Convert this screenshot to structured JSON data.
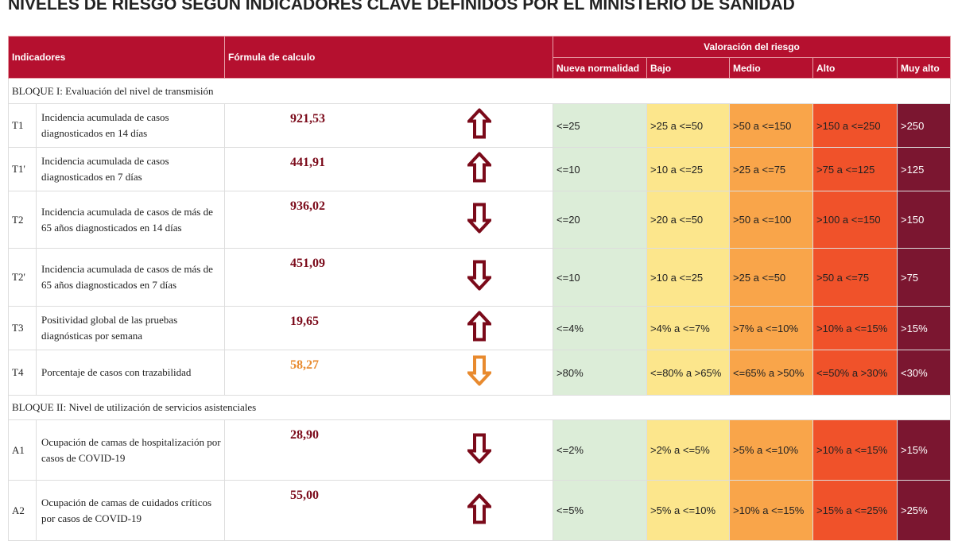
{
  "header": {
    "title": "NIVELES DE RIESGO SEGÚN INDICADORES CLAVE DEFINIDOS POR EL MINISTERIO DE SANIDAD"
  },
  "table": {
    "columns": {
      "indicators": "Indicadores",
      "formula": "Fórmula de calculo",
      "risk": "Valoración del riesgo",
      "levels": [
        "Nueva normalidad",
        "Bajo",
        "Medio",
        "Alto",
        "Muy alto"
      ]
    },
    "level_colors": [
      "#dcedd8",
      "#fce68c",
      "#f9a54a",
      "#f0522a",
      "#7b1630"
    ],
    "sections": [
      {
        "title": "BLOQUE I: Evaluación del nivel de transmisión",
        "rows": [
          {
            "code": "T1",
            "indicator": "Incidencia acumulada de casos diagnosticados en 14 días",
            "value": "921,53",
            "arrow": "up",
            "color": "#7b0a1a",
            "levels": [
              "<=25",
              ">25 a <=50",
              ">50 a <=150",
              ">150 a <=250",
              ">250"
            ]
          },
          {
            "code": "T1'",
            "indicator": "Incidencia acumulada de casos diagnosticados en 7 días",
            "value": "441,91",
            "arrow": "up",
            "color": "#7b0a1a",
            "levels": [
              "<=10",
              ">10 a <=25",
              ">25 a <=75",
              ">75 a <=125",
              ">125"
            ]
          },
          {
            "code": "T2",
            "indicator": "Incidencia acumulada de casos de más de 65 años diagnosticados en 14 días",
            "value": "936,02",
            "arrow": "down",
            "color": "#7b0a1a",
            "levels": [
              "<=20",
              ">20 a <=50",
              ">50 a <=100",
              ">100 a <=150",
              ">150"
            ]
          },
          {
            "code": "T2'",
            "indicator": "Incidencia acumulada de casos de más de 65 años diagnosticados en 7 días",
            "value": "451,09",
            "arrow": "down",
            "color": "#7b0a1a",
            "levels": [
              "<=10",
              ">10 a <=25",
              ">25 a <=50",
              ">50 a <=75",
              ">75"
            ]
          },
          {
            "code": "T3",
            "indicator": "Positividad global de las pruebas diagnósticas por semana",
            "value": "19,65",
            "arrow": "up",
            "color": "#7b0a1a",
            "levels": [
              "<=4%",
              ">4% a <=7%",
              ">7% a <=10%",
              ">10% a <=15%",
              ">15%"
            ]
          },
          {
            "code": "T4",
            "indicator": "Porcentaje de casos con trazabilidad",
            "value": "58,27",
            "arrow": "down",
            "color": "#e88a2e",
            "levels": [
              ">80%",
              "<=80% a >65%",
              "<=65% a >50%",
              "<=50% a >30%",
              "<30%"
            ]
          }
        ]
      },
      {
        "title": "BLOQUE II: Nivel de utilización de servicios asistenciales",
        "rows": [
          {
            "code": "A1",
            "indicator": "Ocupación de camas de hospitalización por casos de COVID-19",
            "value": "28,90",
            "arrow": "down",
            "color": "#7b0a1a",
            "levels": [
              "<=2%",
              ">2% a <=5%",
              ">5% a <=10%",
              ">10% a <=15%",
              ">15%"
            ]
          },
          {
            "code": "A2",
            "indicator": "Ocupación de camas de cuidados críticos por casos de COVID-19",
            "value": "55,00",
            "arrow": "up",
            "color": "#7b0a1a",
            "levels": [
              "<=5%",
              ">5% a <=10%",
              ">10% a <=15%",
              ">15% a <=25%",
              ">25%"
            ]
          }
        ]
      }
    ]
  }
}
